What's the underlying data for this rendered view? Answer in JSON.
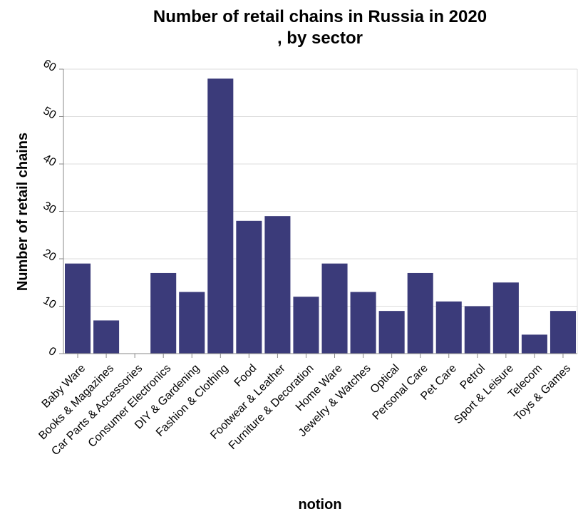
{
  "chart_data": {
    "type": "bar",
    "title": "Number of retail chains in Russia in 2020 , by sector",
    "title_lines": [
      "Number of retail chains in Russia in 2020",
      ", by sector"
    ],
    "xlabel": "notion",
    "ylabel": "Number of retail chains",
    "categories": [
      "Baby Ware",
      "Books & Magazines",
      "Car Parts & Accessories",
      "Consumer Electronics",
      "DIY & Gardening",
      "Fashion & Clothing",
      "Food",
      "Footwear & Leather",
      "Furniture & Decoration",
      "Home Ware",
      "Jewelry & Watches",
      "Optical",
      "Personal Care",
      "Pet Care",
      "Petrol",
      "Sport & Leisure",
      "Telecom",
      "Toys & Games"
    ],
    "values": [
      19,
      7,
      0,
      17,
      13,
      58,
      28,
      29,
      12,
      19,
      13,
      9,
      17,
      11,
      10,
      15,
      4,
      9
    ],
    "ylim": [
      0,
      60
    ],
    "yticks": [
      0,
      10,
      20,
      30,
      40,
      50,
      60
    ],
    "grid": true,
    "legend": "none",
    "bar_color": "#3b3b7a"
  }
}
